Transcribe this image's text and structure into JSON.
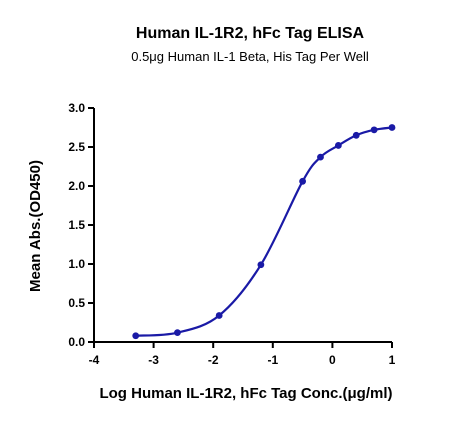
{
  "chart_data": {
    "type": "line",
    "title": "Human IL-1R2, hFc Tag ELISA",
    "subtitle": "0.5μg Human IL-1 Beta, His Tag Per Well",
    "xlabel": "Log Human IL-1R2, hFc Tag Conc.(μg/ml)",
    "ylabel": "Mean Abs.(OD450)",
    "xlim": [
      -4,
      1
    ],
    "ylim": [
      0.0,
      3.0
    ],
    "x_ticks": [
      -4,
      -3,
      -2,
      -1,
      0,
      1
    ],
    "y_ticks": [
      0.0,
      0.5,
      1.0,
      1.5,
      2.0,
      2.5,
      3.0
    ],
    "x_tick_labels": [
      "-4",
      "-3",
      "-2",
      "-1",
      "0",
      "1"
    ],
    "y_tick_labels": [
      "0.0",
      "0.5",
      "1.0",
      "1.5",
      "2.0",
      "2.5",
      "3.0"
    ],
    "grid": false,
    "series": [
      {
        "x": [
          -3.3,
          -2.6,
          -1.9,
          -1.2,
          -0.5,
          -0.2,
          0.1,
          0.4,
          0.7,
          1.0
        ],
        "y": [
          0.08,
          0.12,
          0.34,
          0.99,
          2.06,
          2.37,
          2.52,
          2.65,
          2.72,
          2.75
        ],
        "fit_curve": true
      }
    ],
    "colors": {
      "series": "#1a1aa6",
      "axis": "#000000"
    }
  }
}
